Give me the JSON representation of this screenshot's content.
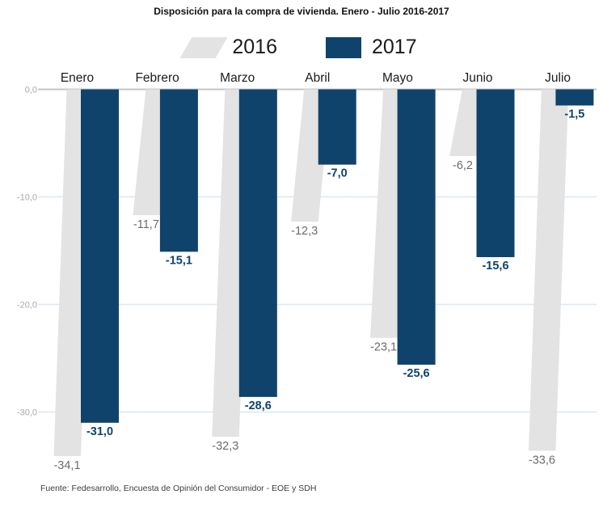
{
  "chart_data": {
    "type": "bar",
    "title": "Disposición para la compra de vivienda. Enero - Julio 2016-2017",
    "source": "Fuente: Fedesarrollo, Encuesta de Opinión del Consumidor - EOE y SDH",
    "categories": [
      "Enero",
      "Febrero",
      "Marzo",
      "Abril",
      "Mayo",
      "Junio",
      "Julio"
    ],
    "series": [
      {
        "name": "2016",
        "color": "#e3e3e3",
        "bar_style": "slanted-parallelogram",
        "label_color": "#6b6b6b",
        "values": [
          -34.1,
          -11.7,
          -32.3,
          -12.3,
          -23.1,
          -6.2,
          -33.6
        ],
        "value_labels": [
          "-34,1",
          "-11,7",
          "-32,3",
          "-12,3",
          "-23,1",
          "-6,2",
          "-33,6"
        ]
      },
      {
        "name": "2017",
        "color": "#0f436c",
        "bar_style": "rectangle",
        "label_color": "#0f436c",
        "values": [
          -31.0,
          -15.1,
          -28.6,
          -7.0,
          -25.6,
          -15.6,
          -1.5
        ],
        "value_labels": [
          "-31,0",
          "-15,1",
          "-28,6",
          "-7,0",
          "-25,6",
          "-15,6",
          "-1,5"
        ]
      }
    ],
    "y_axis": {
      "ticks": [
        0,
        -10,
        -20,
        -30
      ],
      "tick_labels": [
        "0,0",
        "-10,0",
        "-20,0",
        "-30,0"
      ],
      "range": [
        -36,
        0
      ],
      "tick_label_color": "#a9a9a9",
      "zero_line_color": "#c6c6c6",
      "gridline_color": "#d9e8f4"
    },
    "xlabel": "",
    "ylabel": "",
    "legend_position": "top",
    "grid": "horizontal",
    "category_label_color": "#1b1b1b"
  }
}
